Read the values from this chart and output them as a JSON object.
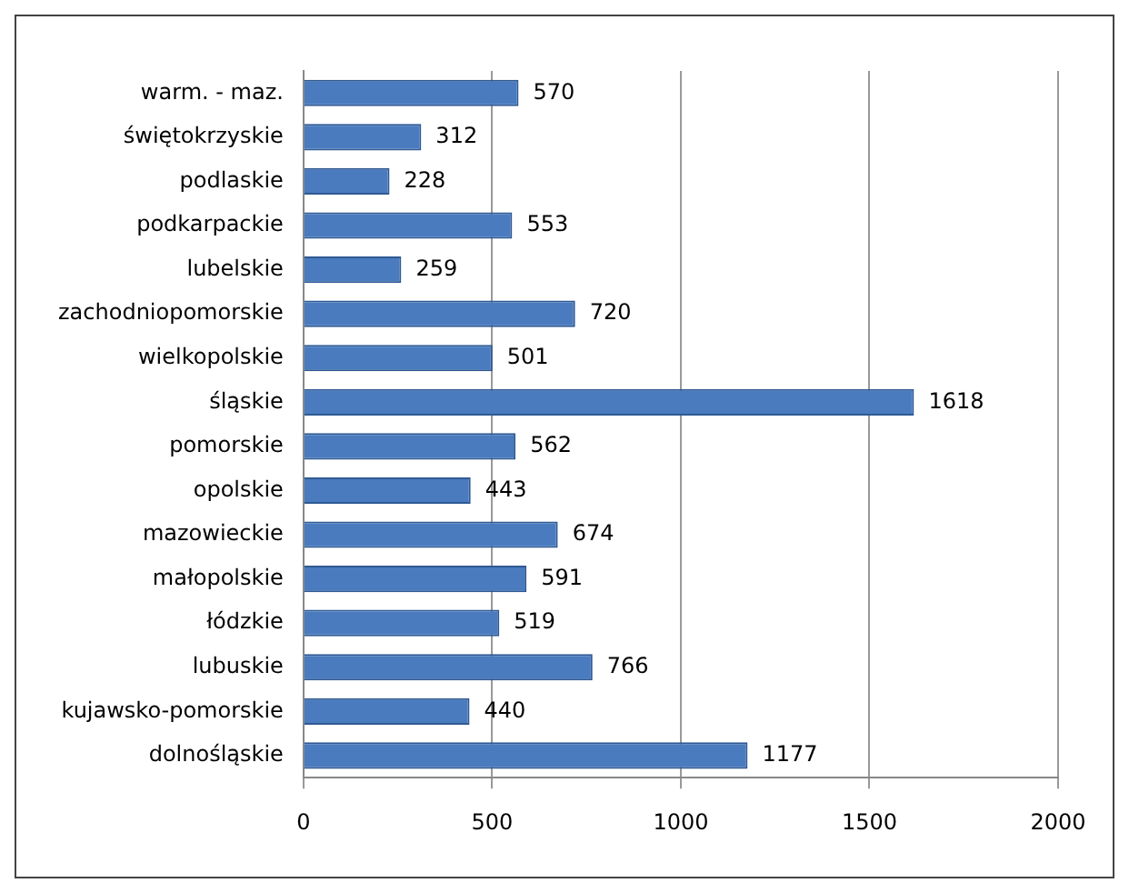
{
  "chart_data": {
    "type": "bar",
    "orientation": "horizontal",
    "categories": [
      "warm. - maz.",
      "świętokrzyskie",
      "podlaskie",
      "podkarpackie",
      "lubelskie",
      "zachodniopomorskie",
      "wielkopolskie",
      "śląskie",
      "pomorskie",
      "opolskie",
      "mazowieckie",
      "małopolskie",
      "łódzkie",
      "lubuskie",
      "kujawsko-pomorskie",
      "dolnośląskie"
    ],
    "values": [
      570,
      312,
      228,
      553,
      259,
      720,
      501,
      1618,
      562,
      443,
      674,
      591,
      519,
      766,
      440,
      1177
    ],
    "color": "#4a7bbf",
    "xlim": [
      0,
      2000
    ],
    "xticks": [
      0,
      500,
      1000,
      1500,
      2000
    ],
    "grid": "x",
    "data_labels": true,
    "legend": false
  }
}
